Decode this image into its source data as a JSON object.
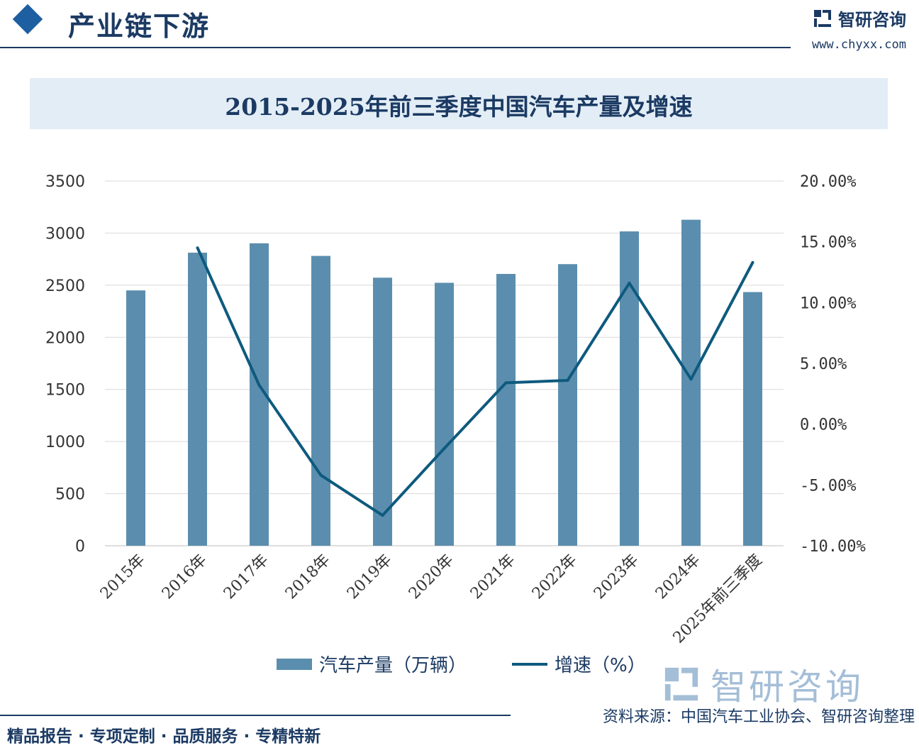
{
  "header": {
    "section_title": "产业链下游",
    "brand_name": "智研咨询",
    "brand_url": "www.chyxx.com"
  },
  "chart_data": {
    "type": "bar",
    "title": "2015-2025年前三季度中国汽车产量及增速",
    "categories": [
      "2015年",
      "2016年",
      "2017年",
      "2018年",
      "2019年",
      "2020年",
      "2021年",
      "2022年",
      "2023年",
      "2024年",
      "2025年前三季度"
    ],
    "series": [
      {
        "name": "汽车产量（万辆）",
        "type": "bar",
        "axis": "left",
        "color": "#5b8eae",
        "values": [
          2450,
          2812,
          2902,
          2781,
          2572,
          2523,
          2608,
          2702,
          3016,
          3128,
          2434
        ]
      },
      {
        "name": "增速（%）",
        "type": "line",
        "axis": "right",
        "color": "#0e5a7e",
        "values": [
          null,
          14.5,
          3.2,
          -4.2,
          -7.5,
          -2.0,
          3.4,
          3.6,
          11.6,
          3.7,
          13.3
        ]
      }
    ],
    "left_axis": {
      "min": 0,
      "max": 3500,
      "ticks": [
        "0",
        "500",
        "1000",
        "1500",
        "2000",
        "2500",
        "3000",
        "3500"
      ]
    },
    "right_axis": {
      "min": -10,
      "max": 20,
      "ticks": [
        "-10.00%",
        "-5.00%",
        "0.00%",
        "5.00%",
        "10.00%",
        "15.00%",
        "20.00%"
      ]
    },
    "grid": true,
    "legend_position": "bottom"
  },
  "footer": {
    "tagline": "精品报告 · 专项定制 · 品质服务 · 专精特新",
    "source": "资料来源：中国汽车工业协会、智研咨询整理"
  },
  "watermark_brand": "智研咨询",
  "colors": {
    "accent": "#1b3a63",
    "bar": "#5b8eae",
    "line": "#0e5a7e",
    "band": "#e3edf6"
  }
}
